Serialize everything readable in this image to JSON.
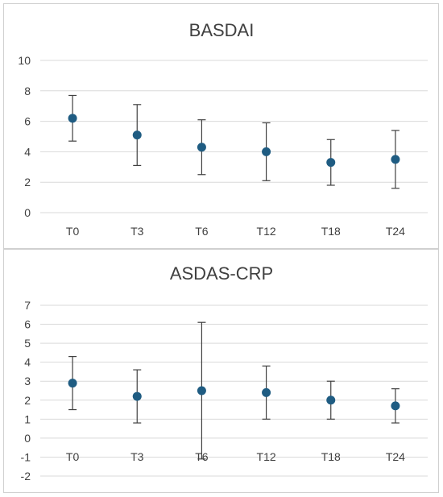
{
  "chart_data": [
    {
      "type": "scatter",
      "title": "BASDAI",
      "categories": [
        "T0",
        "T3",
        "T6",
        "T12",
        "T18",
        "T24"
      ],
      "values": [
        6.2,
        5.1,
        4.3,
        4.0,
        3.3,
        3.5
      ],
      "error_low": [
        4.7,
        3.1,
        2.5,
        2.1,
        1.8,
        1.6
      ],
      "error_high": [
        7.7,
        7.1,
        6.1,
        5.9,
        4.8,
        5.4
      ],
      "ylim": [
        0,
        10
      ],
      "yticks": [
        "0",
        "2",
        "4",
        "6",
        "8",
        "10"
      ],
      "grid": true,
      "marker_color": "#1f5c82",
      "error_color": "#404040"
    },
    {
      "type": "scatter",
      "title": "ASDAS-CRP",
      "categories": [
        "T0",
        "T3",
        "T6",
        "T12",
        "T18",
        "T24"
      ],
      "values": [
        2.9,
        2.2,
        2.5,
        2.4,
        2.0,
        1.7
      ],
      "error_low": [
        1.5,
        0.8,
        -1.1,
        1.0,
        1.0,
        0.8
      ],
      "error_high": [
        4.3,
        3.6,
        6.1,
        3.8,
        3.0,
        2.6
      ],
      "ylim": [
        -2,
        7
      ],
      "yticks": [
        "-2",
        "-1",
        "0",
        "1",
        "2",
        "3",
        "4",
        "5",
        "6",
        "7"
      ],
      "grid": true,
      "marker_color": "#1f5c82",
      "error_color": "#404040"
    }
  ]
}
